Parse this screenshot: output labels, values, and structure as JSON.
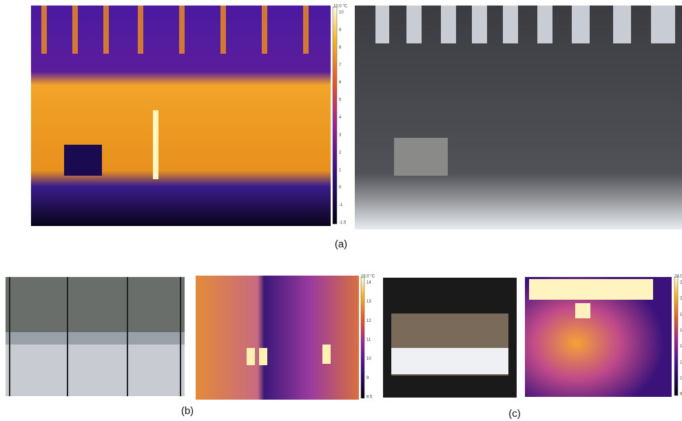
{
  "figure": {
    "panels": [
      {
        "label": "(a)",
        "colorbar": {
          "title": "10.0 °C",
          "ticks": [
            "10",
            "9",
            "8",
            "7",
            "6",
            "5",
            "4",
            "3",
            "2",
            "1",
            "0",
            "-1",
            "-1.5"
          ]
        }
      },
      {
        "label": "(b)",
        "colorbar": {
          "title": "15.0 °C",
          "ticks": [
            "14",
            "13",
            "12",
            "11",
            "10",
            "9",
            "8.5"
          ]
        }
      },
      {
        "label": "(c)",
        "colorbar": {
          "title": "24.0 °C",
          "ticks": [
            "22",
            "20",
            "18",
            "16",
            "14",
            "12",
            "10",
            "9.6"
          ]
        }
      }
    ]
  }
}
